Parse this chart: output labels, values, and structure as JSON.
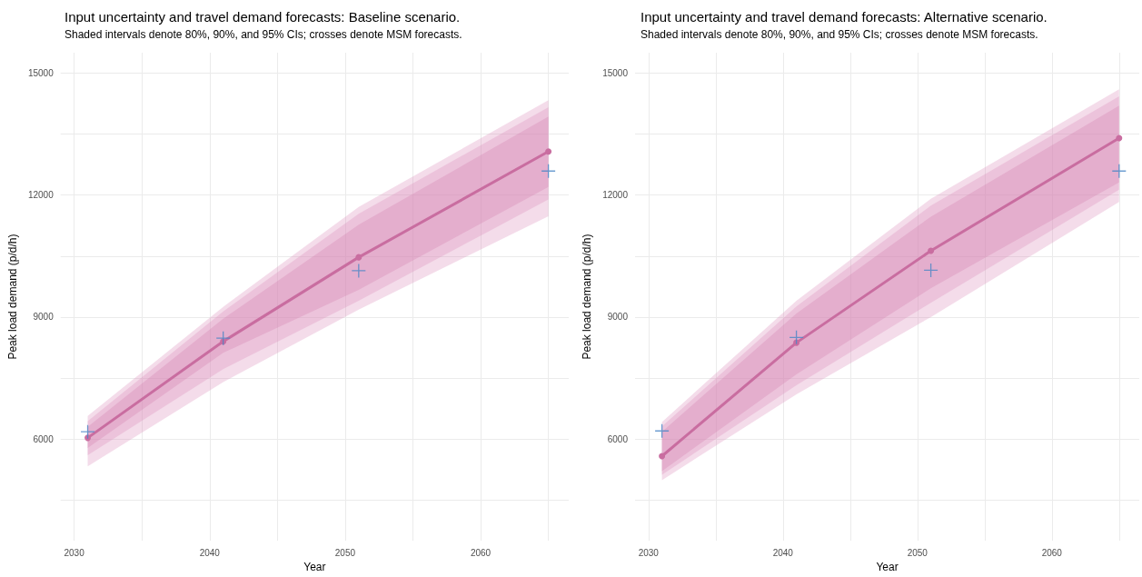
{
  "chart_data": [
    {
      "type": "line",
      "title": "Input uncertainty and travel demand forecasts: Baseline scenario.",
      "subtitle": "Shaded intervals denote 80%, 90%, and 95% CIs; crosses denote MSM forecasts.",
      "xlabel": "Year",
      "ylabel": "Peak load demand (p/d/h)",
      "x": [
        2031,
        2041,
        2051,
        2065
      ],
      "series": [
        {
          "color": "#c96da0",
          "values": [
            6030,
            8400,
            10470,
            13070
          ],
          "lower": [
            5780,
            8120,
            9670,
            12200
          ],
          "upper": [
            6300,
            8960,
            11270,
            13930
          ]
        },
        {
          "color": "#d98bb8",
          "values": [
            null,
            null,
            null,
            null
          ],
          "lower": [
            5600,
            7720,
            9400,
            11890
          ],
          "upper": [
            6440,
            9140,
            11540,
            14160
          ]
        },
        {
          "color": "#d98bb8",
          "values": [
            null,
            null,
            null,
            null
          ],
          "lower": [
            5330,
            7400,
            9180,
            11480
          ],
          "upper": [
            6570,
            9250,
            11710,
            14330
          ]
        },
        {
          "type": "scatter",
          "color": "#4a86c5",
          "marker": "cross",
          "values": [
            6180,
            8480,
            10140,
            12590
          ]
        }
      ],
      "xlim": [
        2029,
        2066.5
      ],
      "xticks": [
        2030,
        {
          "value": 2035,
          "label": null
        },
        2040,
        {
          "value": 2045,
          "label": null
        },
        2050,
        {
          "value": 2055,
          "label": null
        },
        2060,
        {
          "value": 2065,
          "label": null
        }
      ],
      "ylim": [
        3500,
        15500
      ],
      "yticks": [
        {
          "value": 4500,
          "label": null
        },
        6000,
        {
          "value": 7500,
          "label": null
        },
        9000,
        {
          "value": 10500,
          "label": null
        },
        12000,
        {
          "value": 13500,
          "label": null
        },
        15000
      ],
      "grid": true,
      "marker": "circle",
      "line_style": "solid"
    },
    {
      "type": "line",
      "title": "Input uncertainty and travel demand forecasts: Alternative scenario.",
      "subtitle": "Shaded intervals denote 80%, 90%, and 95% CIs; crosses denote MSM forecasts.",
      "xlabel": "Year",
      "ylabel": "Peak load demand (p/d/h)",
      "x": [
        2031,
        2041,
        2051,
        2065
      ],
      "series": [
        {
          "color": "#c96da0",
          "values": [
            5580,
            8370,
            10630,
            13400
          ],
          "lower": [
            5210,
            7590,
            9710,
            12310
          ],
          "upper": [
            6180,
            9090,
            11470,
            14200
          ]
        },
        {
          "color": "#d98bb8",
          "values": [
            null,
            null,
            null,
            null
          ],
          "lower": [
            5120,
            7320,
            9350,
            12130
          ],
          "upper": [
            6310,
            9260,
            11740,
            14430
          ]
        },
        {
          "color": "#d98bb8",
          "values": [
            null,
            null,
            null,
            null
          ],
          "lower": [
            4990,
            7100,
            9000,
            11830
          ],
          "upper": [
            6420,
            9400,
            11910,
            14600
          ]
        },
        {
          "type": "scatter",
          "color": "#4a86c5",
          "marker": "cross",
          "values": [
            6200,
            8500,
            10150,
            12590
          ]
        }
      ],
      "xlim": [
        2029,
        2066.5
      ],
      "xticks": [
        2030,
        {
          "value": 2035,
          "label": null
        },
        2040,
        {
          "value": 2045,
          "label": null
        },
        2050,
        {
          "value": 2055,
          "label": null
        },
        2060,
        {
          "value": 2065,
          "label": null
        }
      ],
      "ylim": [
        3500,
        15500
      ],
      "yticks": [
        {
          "value": 4500,
          "label": null
        },
        6000,
        {
          "value": 7500,
          "label": null
        },
        9000,
        {
          "value": 10500,
          "label": null
        },
        12000,
        {
          "value": 13500,
          "label": null
        },
        15000
      ],
      "grid": true,
      "marker": "circle",
      "line_style": "solid"
    }
  ]
}
